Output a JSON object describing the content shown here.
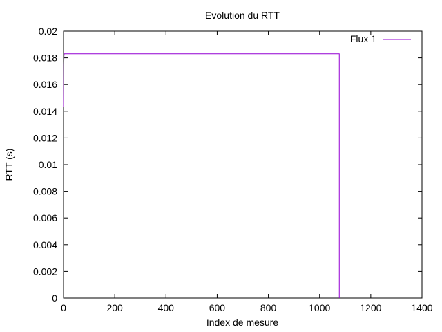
{
  "chart_data": {
    "type": "line",
    "title": "Evolution du RTT",
    "xlabel": "Index de mesure",
    "ylabel": "RTT (s)",
    "xlim": [
      0,
      1400
    ],
    "ylim": [
      0,
      0.02
    ],
    "x_ticks": [
      0,
      200,
      400,
      600,
      800,
      1000,
      1200,
      1400
    ],
    "x_tick_labels": [
      "0",
      "200",
      "400",
      "600",
      "800",
      "1000",
      "1200",
      "1400"
    ],
    "y_ticks": [
      0,
      0.002,
      0.004,
      0.006,
      0.008,
      0.01,
      0.012,
      0.014,
      0.016,
      0.018,
      0.02
    ],
    "y_tick_labels": [
      "0",
      "0.002",
      "0.004",
      "0.006",
      "0.008",
      "0.01",
      "0.012",
      "0.014",
      "0.016",
      "0.018",
      "0.02"
    ],
    "grid": false,
    "legend_position": "top-right",
    "series": [
      {
        "name": "Flux 1",
        "color": "#9400d3",
        "x": [
          0,
          1,
          2,
          3,
          1076,
          1077,
          1077
        ],
        "y": [
          0.0143,
          0.0175,
          0.0182,
          0.0183,
          0.0183,
          0.0183,
          0
        ]
      }
    ]
  }
}
